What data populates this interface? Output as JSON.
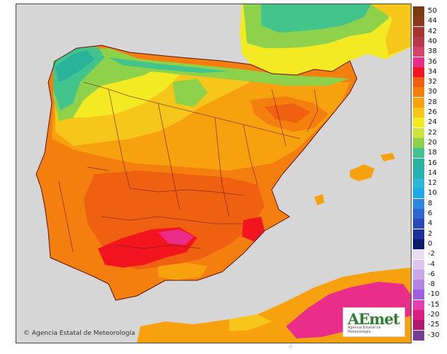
{
  "map": {
    "credit_text": "Agencia Estatal de Meteorología",
    "logo_mark": "AEmet",
    "logo_sub": "Agencia Estatal de Meteorología",
    "bottom_mark": "d",
    "sea_color": "#d6d6d6",
    "colors": {
      "t16": "#29b39a",
      "t18": "#43c48d",
      "t20": "#8ed14a",
      "t22": "#cfe33a",
      "t24": "#f3ea24",
      "t26": "#f7c61a",
      "t28": "#f8a10f",
      "t30": "#f47f0e",
      "t32": "#ef6010",
      "t34": "#f2141f",
      "t36": "#ea2c8a"
    }
  },
  "legend": {
    "entries": [
      {
        "label": "50",
        "color": "#7a3b0e"
      },
      {
        "label": "44",
        "color": "#8b3a1e"
      },
      {
        "label": "42",
        "color": "#a5352e"
      },
      {
        "label": "40",
        "color": "#b83a4a"
      },
      {
        "label": "38",
        "color": "#d4456a"
      },
      {
        "label": "36",
        "color": "#ea2c8a"
      },
      {
        "label": "34",
        "color": "#f2141f"
      },
      {
        "label": "32",
        "color": "#ef6010"
      },
      {
        "label": "30",
        "color": "#f47f0e"
      },
      {
        "label": "28",
        "color": "#f8a10f"
      },
      {
        "label": "26",
        "color": "#f7c61a"
      },
      {
        "label": "24",
        "color": "#f3ea24"
      },
      {
        "label": "22",
        "color": "#cfe33a"
      },
      {
        "label": "20",
        "color": "#8ed14a"
      },
      {
        "label": "18",
        "color": "#43c48d"
      },
      {
        "label": "16",
        "color": "#29b39a"
      },
      {
        "label": "14",
        "color": "#23b1b1"
      },
      {
        "label": "12",
        "color": "#2fb8d6"
      },
      {
        "label": "10",
        "color": "#1fa7e8"
      },
      {
        "label": "8",
        "color": "#2d86e0"
      },
      {
        "label": "6",
        "color": "#2f66cf"
      },
      {
        "label": "4",
        "color": "#2a49b8"
      },
      {
        "label": "2",
        "color": "#1d2f9a"
      },
      {
        "label": "0",
        "color": "#0c1a6b"
      },
      {
        "label": "-2",
        "color": "#e9ddf3"
      },
      {
        "label": "-4",
        "color": "#dcc6ee"
      },
      {
        "label": "-6",
        "color": "#c9a7e8"
      },
      {
        "label": "-8",
        "color": "#b384e2"
      },
      {
        "label": "-10",
        "color": "#9d5fe0"
      },
      {
        "label": "-15",
        "color": "#e43fb0"
      },
      {
        "label": "-20",
        "color": "#d8207e"
      },
      {
        "label": "-25",
        "color": "#b1186e"
      },
      {
        "label": "-30",
        "color": "#7a3d95"
      }
    ]
  }
}
